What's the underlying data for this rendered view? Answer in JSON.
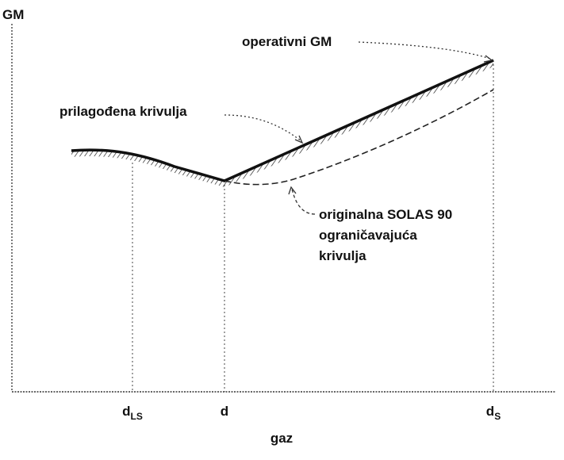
{
  "axes": {
    "y_label": "GM",
    "x_label": "gaz"
  },
  "ticks": [
    {
      "main": "d",
      "sub": "LS"
    },
    {
      "main": "d"
    },
    {
      "main": "d",
      "sub": "S"
    }
  ],
  "annotations": {
    "operational": "operativni GM",
    "adjusted": "prilagođena krivulja",
    "original": [
      "originalna SOLAS 90",
      "ograničavajuća",
      "krivulja"
    ]
  }
}
